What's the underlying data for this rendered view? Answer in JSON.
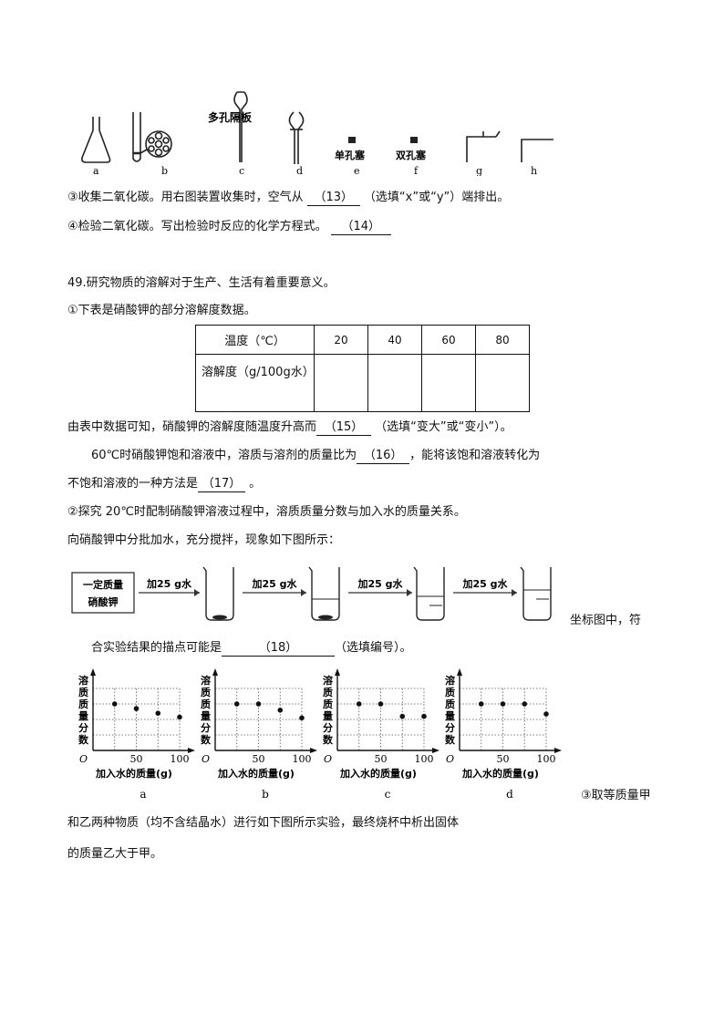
{
  "apparatus": {
    "labels": [
      "a",
      "b",
      "c",
      "d",
      "e",
      "f",
      "g",
      "h"
    ],
    "porous_plate_label": "多孔隔板",
    "single_hole_stopper": "单孔塞",
    "double_hole_stopper": "双孔塞"
  },
  "q48": {
    "item3": {
      "text_before": "③收集二氧化碳。用右图装置收集时，空气从 ",
      "blank": "（13）",
      "text_after": " （选填“x”或“y”）端排出。"
    },
    "item4": {
      "text_before": "④检验二氧化碳。写出检验时反应的化学方程式。 ",
      "blank": "（14）"
    }
  },
  "q49": {
    "intro": "49.研究物质的溶解对于生产、生活有着重要意义。",
    "part1_intro": "①下表是硝酸钾的部分溶解度数据。",
    "table": {
      "row1_header": "温度（℃）",
      "temperatures": [
        "20",
        "40",
        "60",
        "80"
      ],
      "row2_header": "溶解度（g/100g水）",
      "solubility": [
        "",
        "",
        "",
        ""
      ]
    },
    "line15": {
      "before": "由表中数据可知，硝酸钾的溶解度随温度升高而",
      "blank": "（15）",
      "after": " （选填“变大”或“变小”）。"
    },
    "line16": {
      "before": "60℃时硝酸钾饱和溶液中，溶质与溶剂的质量比为",
      "blank": "（16）",
      "after": "，能将该饱和溶液转化为"
    },
    "line17": {
      "before": "不饱和溶液的一种方法是",
      "blank": "（17）",
      "after": " 。"
    },
    "part2_intro": "②探究 20℃时配制硝酸钾溶液过程中，溶质质量分数与加入水的质量关系。",
    "part2_line2": "向硝酸钾中分批加水，充分搅拌，现象如下图所示：",
    "process": {
      "start_box": [
        "一定质量",
        "硝酸钾"
      ],
      "arrow_label": "加25 g水"
    },
    "coord_text": "坐标图中，符",
    "line18": {
      "before": "合实验结果的描点可能是",
      "blank": "（18）",
      "after": "（选填编号）。"
    },
    "part3_start": "③取等质量甲",
    "part3_line2": "和乙两种物质（均不含结晶水）进行如下图所示实验，最终烧杯中析出固体",
    "part3_line3": "的质量乙大于甲。"
  },
  "chart_data": [
    {
      "type": "scatter",
      "label": "a",
      "ylabel": "溶质质量分数",
      "xlabel": "加入水的质量(g)",
      "origin": "O",
      "xticks": [
        "50",
        "100"
      ],
      "x": [
        25,
        50,
        75,
        100
      ],
      "y_grid_level": [
        3,
        2.7,
        2.4,
        2.15
      ],
      "grid": true
    },
    {
      "type": "scatter",
      "label": "b",
      "ylabel": "溶质质量分数",
      "xlabel": "加入水的质量(g)",
      "origin": "O",
      "xticks": [
        "50",
        "100"
      ],
      "x": [
        25,
        50,
        75,
        100
      ],
      "y_grid_level": [
        3,
        3,
        2.6,
        2.1
      ],
      "grid": true
    },
    {
      "type": "scatter",
      "label": "c",
      "ylabel": "溶质质量分数",
      "xlabel": "加入水的质量(g)",
      "origin": "O",
      "xticks": [
        "50",
        "100"
      ],
      "x": [
        25,
        50,
        75,
        100
      ],
      "y_grid_level": [
        3,
        3,
        2.2,
        2.2
      ],
      "grid": true
    },
    {
      "type": "scatter",
      "label": "d",
      "ylabel": "溶质质量分数",
      "xlabel": "加入水的质量(g)",
      "origin": "O",
      "xticks": [
        "50",
        "100"
      ],
      "x": [
        25,
        50,
        75,
        100
      ],
      "y_grid_level": [
        3,
        3,
        3,
        2.35
      ],
      "grid": true
    }
  ]
}
